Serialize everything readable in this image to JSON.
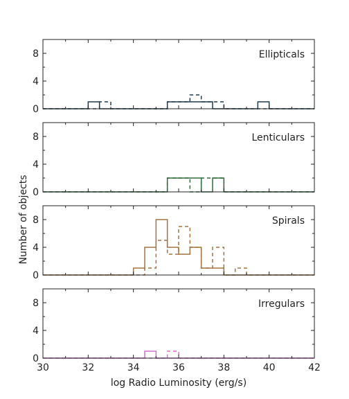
{
  "chart_data": {
    "type": "histogram",
    "xlabel": "log Radio Luminosity (erg/s)",
    "ylabel": "Number of objects",
    "xlim": [
      30,
      42
    ],
    "xticks": [
      30,
      32,
      34,
      36,
      38,
      40,
      42
    ],
    "ylim": [
      0,
      10
    ],
    "yticks": [
      0,
      4,
      8
    ],
    "bin_width": 0.5,
    "line_style_solid": "solid",
    "line_style_dashed": "dashed",
    "grid": false,
    "panels": [
      {
        "label": "Ellipticals",
        "color": "#1f3a4d",
        "series": [
          {
            "style": "solid",
            "bins": [
              [
                32.0,
                1
              ],
              [
                35.5,
                1
              ],
              [
                36.0,
                1
              ],
              [
                36.5,
                1
              ],
              [
                37.0,
                1
              ],
              [
                39.5,
                1
              ]
            ]
          },
          {
            "style": "dashed",
            "bins": [
              [
                32.5,
                1
              ],
              [
                35.5,
                1
              ],
              [
                36.0,
                1
              ],
              [
                36.5,
                2
              ],
              [
                37.0,
                1
              ],
              [
                37.5,
                1
              ]
            ]
          }
        ]
      },
      {
        "label": "Lenticulars",
        "color": "#2e6b3a",
        "series": [
          {
            "style": "solid",
            "bins": [
              [
                35.5,
                2
              ],
              [
                36.0,
                2
              ],
              [
                36.5,
                2
              ],
              [
                37.5,
                2
              ]
            ]
          },
          {
            "style": "dashed",
            "bins": [
              [
                35.5,
                2
              ],
              [
                36.0,
                2
              ],
              [
                37.0,
                2
              ],
              [
                37.5,
                2
              ]
            ]
          }
        ]
      },
      {
        "label": "Spirals",
        "color": "#a3733f",
        "series": [
          {
            "style": "solid",
            "bins": [
              [
                34.0,
                1
              ],
              [
                34.5,
                4
              ],
              [
                35.0,
                8
              ],
              [
                35.5,
                4
              ],
              [
                36.0,
                3
              ],
              [
                36.5,
                4
              ],
              [
                37.0,
                1
              ],
              [
                37.5,
                1
              ]
            ]
          },
          {
            "style": "dashed",
            "bins": [
              [
                34.5,
                1
              ],
              [
                35.0,
                5
              ],
              [
                35.5,
                3
              ],
              [
                36.0,
                7
              ],
              [
                36.5,
                4
              ],
              [
                37.0,
                1
              ],
              [
                37.5,
                4
              ],
              [
                38.5,
                1
              ]
            ]
          }
        ]
      },
      {
        "label": "Irregulars",
        "color": "#d46fd0",
        "series": [
          {
            "style": "solid",
            "bins": [
              [
                34.5,
                1
              ]
            ]
          },
          {
            "style": "dashed",
            "bins": [
              [
                35.5,
                1
              ]
            ]
          }
        ]
      }
    ]
  }
}
